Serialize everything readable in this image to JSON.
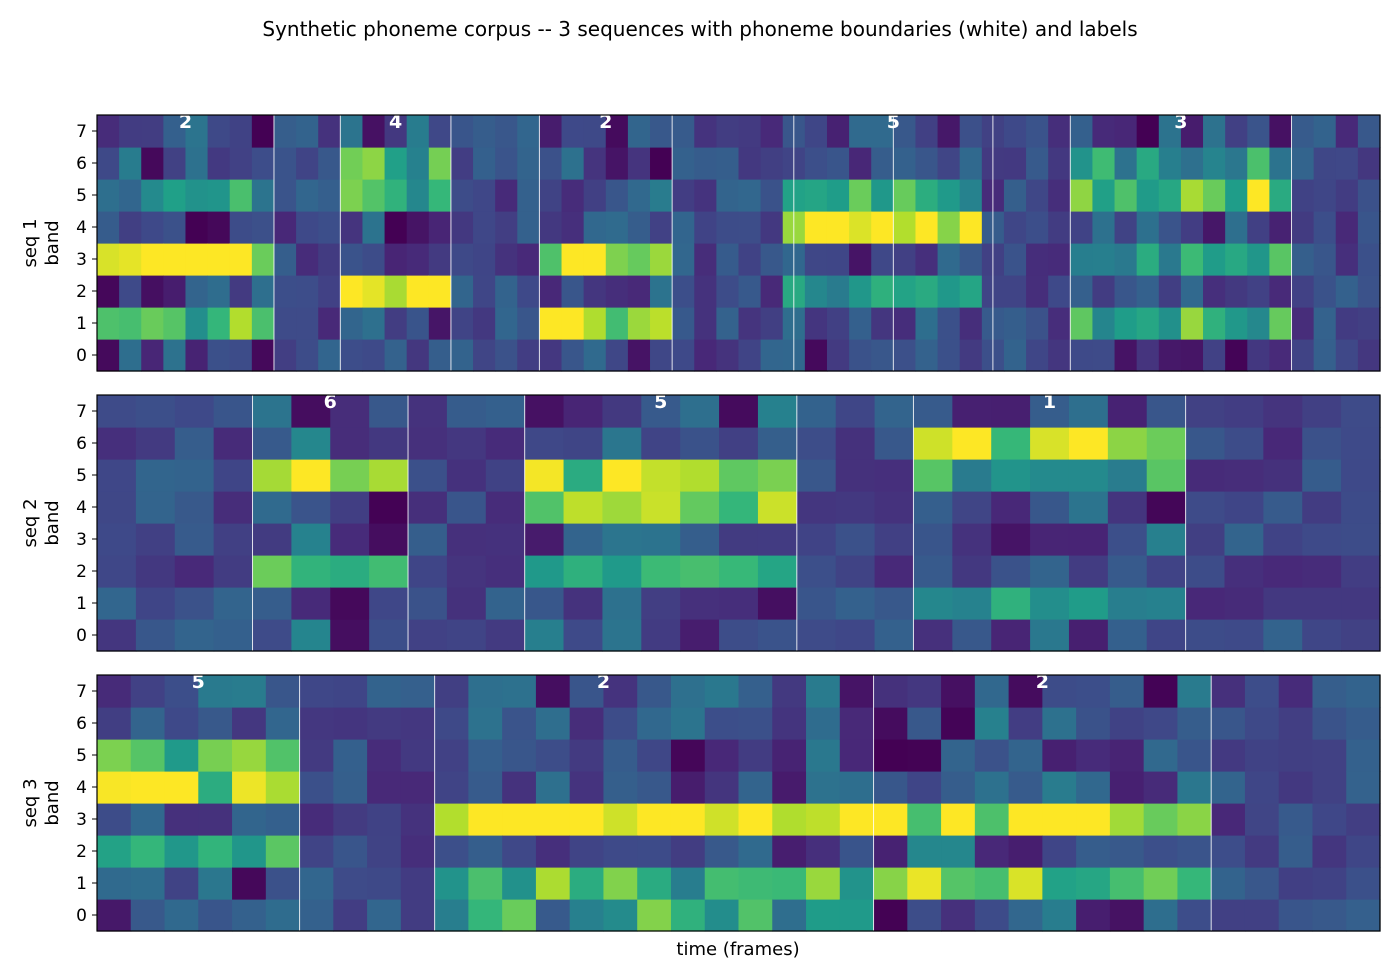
{
  "chart_data": {
    "type": "heatmap",
    "title": "Synthetic phoneme corpus -- 3 sequences with phoneme boundaries (white) and labels",
    "xlabel": "time (frames)",
    "colormap": "viridis",
    "band_ticks": [
      "0",
      "1",
      "2",
      "3",
      "4",
      "5",
      "6",
      "7"
    ],
    "sequences": [
      {
        "ylabel_line1": "seq 1",
        "ylabel_line2": "band",
        "frames": 58,
        "boundaries": [
          8,
          11,
          16,
          20,
          26,
          31.5,
          36,
          40.5,
          44,
          54
        ],
        "phoneme_labels": [
          {
            "text": "2",
            "center": 4
          },
          {
            "text": "4",
            "center": 13.5
          },
          {
            "text": "2",
            "center": 23
          },
          {
            "text": "5",
            "center": 36
          },
          {
            "text": "3",
            "center": 49
          }
        ],
        "bursts": [
          {
            "start": 0,
            "end": 8,
            "bands": [
              3,
              1,
              5
            ],
            "strength": [
              1.0,
              0.6,
              0.35
            ]
          },
          {
            "start": 11,
            "end": 16,
            "bands": [
              2,
              5,
              6
            ],
            "strength": [
              1.0,
              0.55,
              0.5
            ]
          },
          {
            "start": 20,
            "end": 26,
            "bands": [
              3,
              1
            ],
            "strength": [
              1.0,
              0.65
            ]
          },
          {
            "start": 31.5,
            "end": 40.5,
            "bands": [
              4,
              5,
              2
            ],
            "strength": [
              0.85,
              0.6,
              0.5
            ]
          },
          {
            "start": 44,
            "end": 54,
            "bands": [
              5,
              3,
              1,
              6
            ],
            "strength": [
              0.65,
              0.45,
              0.45,
              0.35
            ]
          }
        ]
      },
      {
        "ylabel_line1": "seq 2",
        "ylabel_line2": "band",
        "frames": 33,
        "boundaries": [
          4,
          8,
          11,
          18,
          21,
          28
        ],
        "phoneme_labels": [
          {
            "text": "6",
            "center": 6
          },
          {
            "text": "5",
            "center": 14.5
          },
          {
            "text": "1",
            "center": 24.5
          }
        ],
        "bursts": [
          {
            "start": 4,
            "end": 8,
            "bands": [
              5,
              2
            ],
            "strength": [
              0.85,
              0.65
            ]
          },
          {
            "start": 11,
            "end": 18,
            "bands": [
              5,
              4,
              2
            ],
            "strength": [
              0.85,
              0.75,
              0.55
            ]
          },
          {
            "start": 21,
            "end": 28,
            "bands": [
              6,
              5,
              1
            ],
            "strength": [
              0.95,
              0.5,
              0.4
            ]
          }
        ]
      },
      {
        "ylabel_line1": "seq 3",
        "ylabel_line2": "band",
        "frames": 38,
        "boundaries": [
          6,
          10,
          23,
          33
        ],
        "phoneme_labels": [
          {
            "text": "5",
            "center": 3
          },
          {
            "text": "2",
            "center": 15
          },
          {
            "text": "2",
            "center": 28
          }
        ],
        "bursts": [
          {
            "start": 0,
            "end": 6,
            "bands": [
              4,
              5,
              2
            ],
            "strength": [
              0.85,
              0.7,
              0.55
            ]
          },
          {
            "start": 10,
            "end": 23,
            "bands": [
              3,
              1,
              0
            ],
            "strength": [
              1.0,
              0.6,
              0.45
            ]
          },
          {
            "start": 23,
            "end": 33,
            "bands": [
              3,
              1
            ],
            "strength": [
              1.0,
              0.65
            ]
          }
        ]
      }
    ]
  }
}
